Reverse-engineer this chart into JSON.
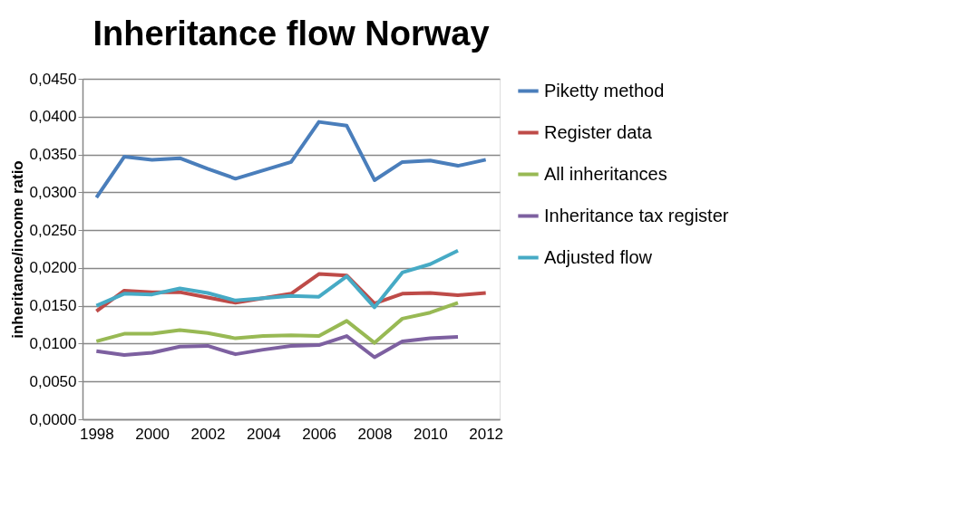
{
  "chart_data": {
    "type": "line",
    "title": "Inheritance flow Norway",
    "ylabel": "inheritance/income ratio",
    "x": [
      1998,
      1999,
      2000,
      2001,
      2002,
      2003,
      2004,
      2005,
      2006,
      2007,
      2008,
      2009,
      2010,
      2011,
      2012
    ],
    "xlim": [
      1997.5,
      2012.5
    ],
    "xticks": [
      1998,
      2000,
      2002,
      2004,
      2006,
      2008,
      2010,
      2012
    ],
    "ylim": [
      0,
      0.045
    ],
    "yticks": [
      {
        "value": 0,
        "label": "0,0000"
      },
      {
        "value": 0.005,
        "label": "0,0050"
      },
      {
        "value": 0.01,
        "label": "0,0100"
      },
      {
        "value": 0.015,
        "label": "0,0150"
      },
      {
        "value": 0.02,
        "label": "0,0200"
      },
      {
        "value": 0.025,
        "label": "0,0250"
      },
      {
        "value": 0.03,
        "label": "0,0300"
      },
      {
        "value": 0.035,
        "label": "0,0350"
      },
      {
        "value": 0.04,
        "label": "0,0400"
      },
      {
        "value": 0.045,
        "label": "0,0450"
      }
    ],
    "grid": "y",
    "legend": "right",
    "marker": "none",
    "line_style": "solid",
    "series": [
      {
        "name": "Piketty method",
        "color": "#4a7ebb",
        "values": [
          0.0293,
          0.0347,
          0.0343,
          0.0345,
          0.0331,
          0.0318,
          0.0329,
          0.034,
          0.0393,
          0.0388,
          0.0316,
          0.034,
          0.0342,
          0.0335,
          0.0343
        ]
      },
      {
        "name": "Register data",
        "color": "#be4b48",
        "values": [
          0.0143,
          0.017,
          0.0168,
          0.0168,
          0.0161,
          0.0154,
          0.016,
          0.0166,
          0.0192,
          0.019,
          0.0153,
          0.0166,
          0.0167,
          0.0164,
          0.0167
        ]
      },
      {
        "name": "All inheritances",
        "color": "#98b954",
        "values": [
          0.0103,
          0.0113,
          0.0113,
          0.0118,
          0.0114,
          0.0107,
          0.011,
          0.0111,
          0.011,
          0.013,
          0.0101,
          0.0133,
          0.0141,
          0.0154,
          null
        ]
      },
      {
        "name": "Inheritance tax register",
        "color": "#7d60a0",
        "values": [
          0.009,
          0.0085,
          0.0088,
          0.0096,
          0.0097,
          0.0086,
          0.0092,
          0.0097,
          0.0098,
          0.011,
          0.0082,
          0.0103,
          0.0107,
          0.0109,
          null
        ]
      },
      {
        "name": "Adjusted flow",
        "color": "#46aac5",
        "values": [
          0.015,
          0.0166,
          0.0165,
          0.0173,
          0.0167,
          0.0157,
          0.016,
          0.0163,
          0.0162,
          0.0189,
          0.0148,
          0.0194,
          0.0205,
          0.0223,
          null
        ]
      }
    ]
  }
}
